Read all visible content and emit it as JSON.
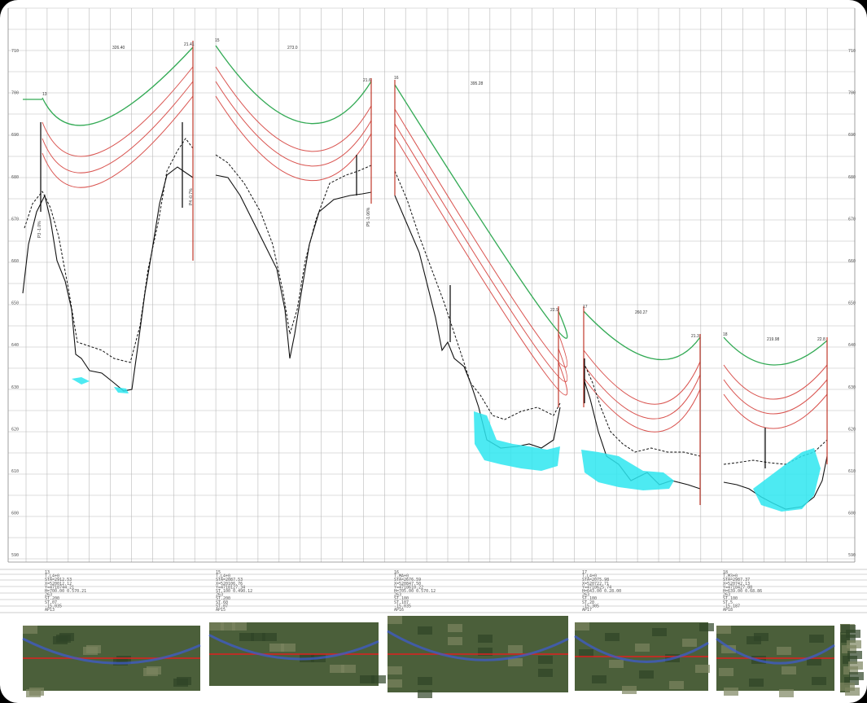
{
  "sheet": {
    "elevation_ticks": [
      "710",
      "700",
      "690",
      "680",
      "670",
      "660",
      "650",
      "640",
      "630",
      "620",
      "610",
      "600",
      "590"
    ],
    "colors": {
      "grid": "#b9b9b9",
      "terrain": "#111111",
      "design_green": "#33aa55",
      "design_red": "#d9534f",
      "pole": "#c0392b",
      "water": "#2ee6f0",
      "vegetation": "#d2873a"
    }
  },
  "spans": [
    {
      "id": "span-1",
      "start_label": "13",
      "span_length": "326.40",
      "end_label": "21.41",
      "info": [
        "13",
        "T-L4+0",
        "STA=2912.53",
        "X=520012.12",
        "Y=4718744.21",
        "H=700.00 0.570.21",
        "263",
        "ST.200",
        "ST.07",
        "-15.035",
        "AP13"
      ]
    },
    {
      "id": "span-2",
      "start_label": "15",
      "span_length": "273.0",
      "end_label": "21.6",
      "info": [
        "15",
        "T-L4+0",
        "STA=2087.53",
        "X=520106.76",
        "Y=4718127.34",
        "ST.100 0.490.12",
        "263",
        "ST.200",
        "ST.60",
        "ST.07",
        "AP15"
      ]
    },
    {
      "id": "span-3",
      "start_label": "16",
      "span_length": "395.28",
      "end_label": "22.9",
      "info": [
        "16",
        "T-MA+0",
        "STA=2676.59",
        "X=520847.50",
        "Y=4718610.22",
        "H=705.00 0.570.12",
        "263",
        "ST.100",
        "ST.107",
        "-15.035",
        "AP16"
      ]
    },
    {
      "id": "span-4",
      "start_label": "17",
      "span_length": "260.27",
      "end_label": "21.3",
      "info": [
        "17",
        "T-L4+0",
        "STA=2075.98",
        "X=520722.71",
        "Y=4718625.74",
        "H=643.00 0.28.00",
        "263",
        "ST.100",
        "ST.20",
        "-15.305",
        "AP17"
      ]
    },
    {
      "id": "span-5",
      "start_label": "18",
      "span_length": "219.98",
      "end_label": "22.8",
      "info": [
        "18",
        "T-M3+0",
        "STA=2987.37",
        "X=520742.13",
        "Y=4718427.88",
        "H=639.00 0.68.86",
        "263",
        "ST.100",
        "ST.5",
        "-15.187",
        "AP18"
      ]
    }
  ],
  "tower_tags": [
    "P3 -1.0%",
    "P4 -0.7%",
    "P5 -1.06%"
  ]
}
